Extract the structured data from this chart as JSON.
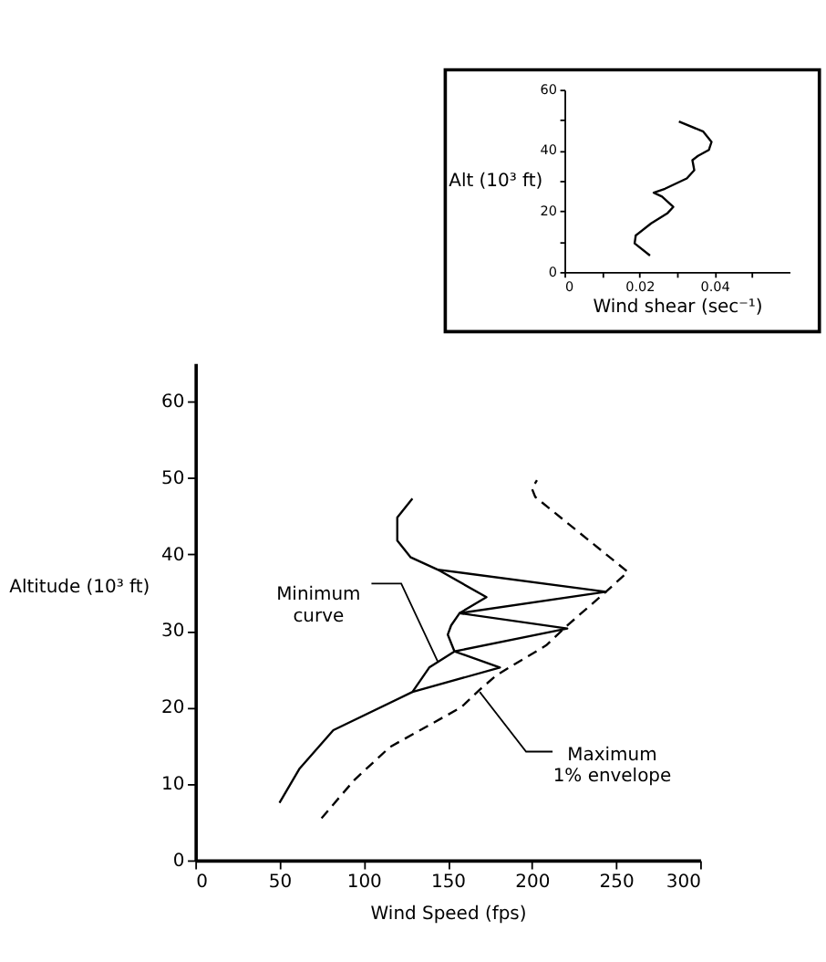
{
  "chart_data": [
    {
      "type": "line",
      "xlabel": "Wind shear (sec⁻¹)",
      "ylabel": "Alt (10³ ft)",
      "xlim": [
        0,
        0.06
      ],
      "xticks": [
        0,
        {
          "value": 0.01,
          "label": null
        },
        0.02,
        {
          "value": 0.03,
          "label": null
        },
        0.04,
        {
          "value": 0.05,
          "label": null
        }
      ],
      "ylim": [
        0,
        60
      ],
      "yticks": [
        0,
        {
          "value": 10,
          "label": null
        },
        20,
        {
          "value": 30,
          "label": null
        },
        40,
        {
          "value": 50,
          "label": null
        },
        60
      ],
      "series": [
        {
          "color": "#000000",
          "line_style": "solid",
          "x": [
            0.0228,
            0.0187,
            0.019,
            0.0231,
            0.0275,
            0.029,
            0.026,
            0.0238,
            0.0268,
            0.0326,
            0.0346,
            0.0341,
            0.0356,
            0.0385,
            0.0392,
            0.037,
            0.0305
          ],
          "values": [
            5.4,
            9.4,
            12,
            16,
            19.4,
            21.4,
            24.8,
            26.1,
            27.4,
            30.8,
            33.5,
            36.8,
            38.2,
            40.2,
            42.8,
            46.2,
            49.5
          ]
        }
      ]
    },
    {
      "type": "line",
      "xlabel": "Wind Speed (fps)",
      "ylabel": "Altitude (10³ ft)",
      "xlim": [
        0,
        300
      ],
      "xticks": [
        0,
        50,
        100,
        150,
        200,
        250,
        300
      ],
      "ylim": [
        0,
        65
      ],
      "yticks": [
        0,
        10,
        20,
        30,
        40,
        50,
        60
      ],
      "series": [
        {
          "color": "#000000",
          "line_style": "solid",
          "x": [
            50,
            62,
            82,
            129,
            139,
            154,
            150,
            152,
            157,
            173,
            144,
            128,
            120,
            120,
            129
          ],
          "values": [
            7.5,
            12,
            17,
            22,
            25.2,
            27.3,
            29.5,
            30.7,
            32.3,
            34.4,
            38,
            39.6,
            41.8,
            44.8,
            47.3
          ]
        },
        {
          "color": "#000000",
          "line_style": "solid",
          "x": [
            129,
            181,
            154,
            221,
            157,
            244,
            144
          ],
          "values": [
            22,
            25.2,
            27.3,
            30.3,
            32.3,
            35.1,
            38
          ]
        },
        {
          "color": "#000000",
          "line_style": "dashed",
          "x": [
            75,
            94.5,
            115.6,
            158,
            169,
            179,
            208.5,
            220,
            244,
            257,
            202,
            200,
            203
          ],
          "values": [
            5.5,
            10.5,
            14.8,
            20,
            22.3,
            24.2,
            28.1,
            30.5,
            35.1,
            37.7,
            47.5,
            48.6,
            49.7
          ]
        }
      ],
      "annotations": [
        {
          "text": "Minimum\ncurve",
          "x": 144,
          "y": 26
        },
        {
          "text": "Maximum\n1% envelope",
          "x": 169,
          "y": 22
        }
      ]
    }
  ]
}
